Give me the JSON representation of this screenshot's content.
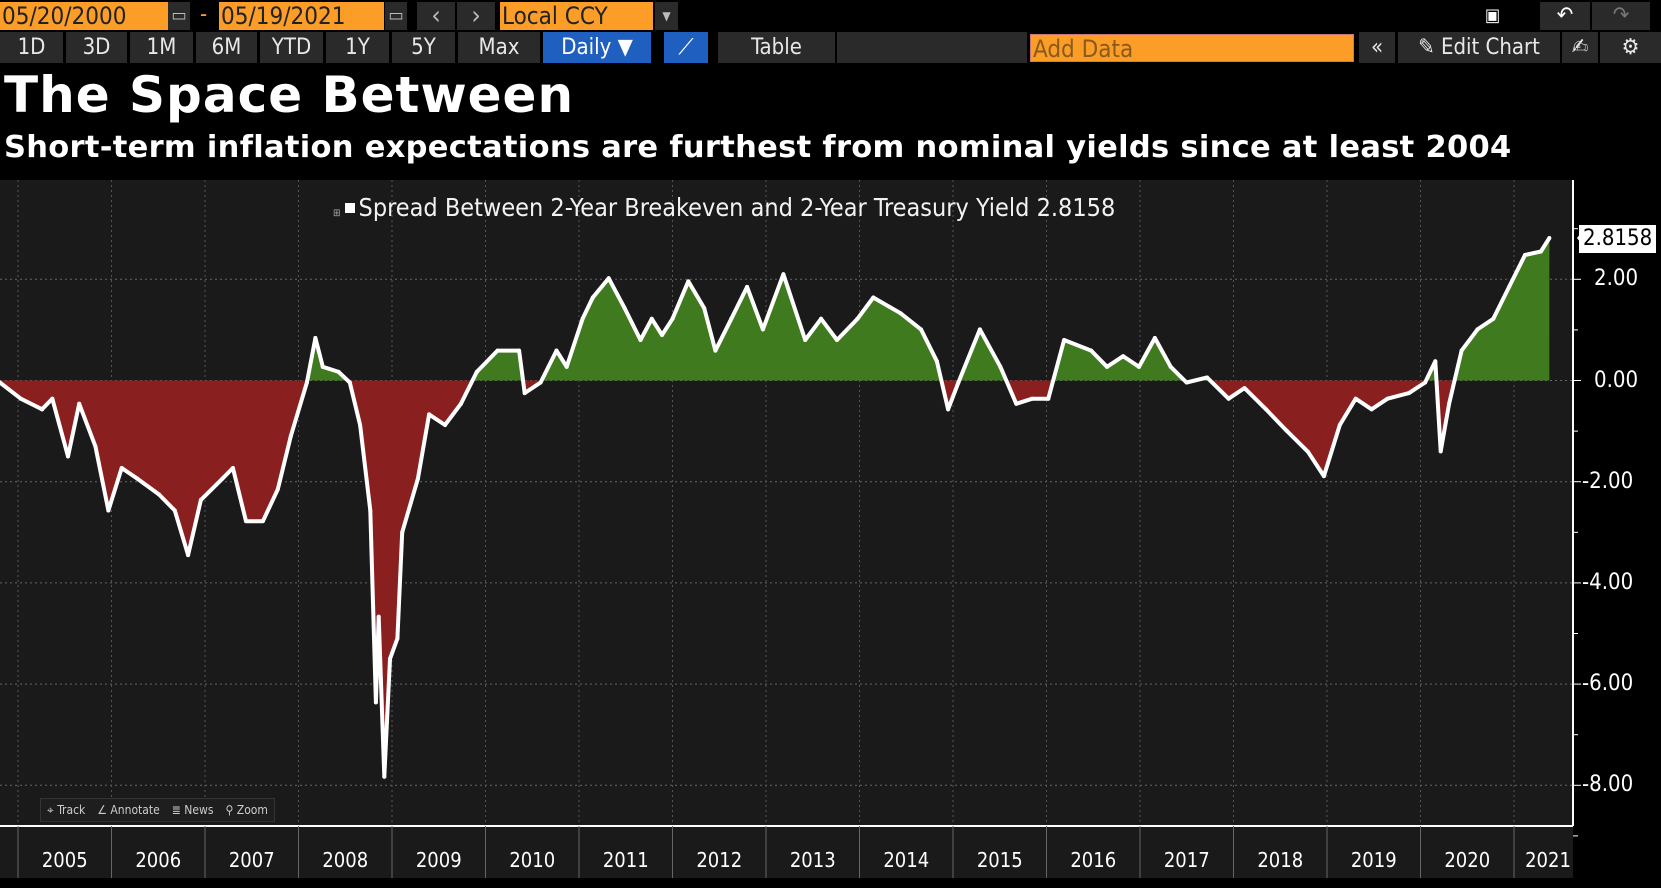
{
  "toolbar": {
    "start_date": "05/20/2000",
    "end_date": "05/19/2021",
    "separator": "-",
    "prev_label": "‹",
    "next_label": "›",
    "currency": "Local CCY",
    "periods": [
      "1D",
      "3D",
      "1M",
      "6M",
      "YTD",
      "1Y",
      "5Y",
      "Max"
    ],
    "frequency": "Daily ▼",
    "table_label": "Table",
    "add_data_placeholder": "Add Data",
    "collapse_label": "«",
    "edit_chart_label": "Edit Chart"
  },
  "header": {
    "title": "The Space Between",
    "subtitle": "Short-term inflation expectations are furthest from nominal yields since at least 2004"
  },
  "chart_tools": [
    "Track",
    "Annotate",
    "News",
    "Zoom"
  ],
  "colors": {
    "positive_fill": "#3f7a1e",
    "negative_fill": "#8a1f1f",
    "line": "#ffffff",
    "plot_bg": "#1a1a1a",
    "accent": "#fb9d27"
  },
  "chart_data": {
    "type": "area",
    "title": "The Space Between",
    "subtitle": "Short-term inflation expectations are furthest from nominal yields since at least 2004",
    "legend_position": "top-center",
    "grid": true,
    "y_axis_side": "right",
    "ylim": [
      -9,
      3.4
    ],
    "yticks": [
      "2.00",
      "0.00",
      "-2.00",
      "-4.00",
      "-6.00",
      "-8.00"
    ],
    "xticks": [
      "2005",
      "2006",
      "2007",
      "2008",
      "2009",
      "2010",
      "2011",
      "2012",
      "2013",
      "2014",
      "2015",
      "2016",
      "2017",
      "2018",
      "2019",
      "2020",
      "2021"
    ],
    "last_value_label": "2.8158",
    "series": [
      {
        "name": "Spread Between 2-Year Breakeven and 2-Year Treasury Yield",
        "last": "2.8158",
        "x": [
          "2004-10-22",
          "2005-01-12",
          "2005-04-05",
          "2005-05-15",
          "2005-07-15",
          "2005-08-28",
          "2005-10-30",
          "2005-12-20",
          "2006-02-10",
          "2006-04-12",
          "2006-07-05",
          "2006-09-05",
          "2006-10-27",
          "2006-12-16",
          "2007-03-10",
          "2007-04-20",
          "2007-06-10",
          "2007-08-15",
          "2007-10-12",
          "2007-12-02",
          "2008-02-03",
          "2008-03-07",
          "2008-04-05",
          "2008-06-06",
          "2008-07-20",
          "2008-08-29",
          "2008-10-08",
          "2008-10-30",
          "2008-11-10",
          "2008-12-02",
          "2008-12-24",
          "2009-01-22",
          "2009-02-10",
          "2009-04-12",
          "2009-05-26",
          "2009-07-27",
          "2009-09-27",
          "2009-11-28",
          "2010-02-17",
          "2010-05-12",
          "2010-06-03",
          "2010-08-04",
          "2010-10-05",
          "2010-11-14",
          "2011-01-15",
          "2011-02-24",
          "2011-04-27",
          "2011-06-28",
          "2011-08-29",
          "2011-10-12",
          "2011-11-21",
          "2012-01-01",
          "2012-03-03",
          "2012-05-04",
          "2012-06-17",
          "2012-08-18",
          "2012-10-19",
          "2012-12-20",
          "2013-03-10",
          "2013-06-03",
          "2013-08-04",
          "2013-10-05",
          "2013-12-24",
          "2014-02-24",
          "2014-06-10",
          "2014-08-29",
          "2014-10-30",
          "2014-12-13",
          "2015-01-22",
          "2015-04-16",
          "2015-07-05",
          "2015-09-05",
          "2015-11-06",
          "2016-01-08",
          "2016-03-10",
          "2016-06-24",
          "2016-08-25",
          "2016-10-27",
          "2016-12-28",
          "2017-02-28",
          "2017-05-01",
          "2017-07-02",
          "2017-09-20",
          "2017-12-13",
          "2018-02-13",
          "2018-05-08",
          "2018-07-27",
          "2018-10-19",
          "2018-12-20",
          "2019-02-20",
          "2019-04-23",
          "2019-06-24",
          "2019-08-25",
          "2019-11-17",
          "2020-01-19",
          "2020-02-28",
          "2020-03-20",
          "2020-04-22",
          "2020-06-10",
          "2020-08-11",
          "2020-10-12",
          "2020-12-13",
          "2021-02-13",
          "2021-04-16",
          "2021-05-19"
        ],
        "y": [
          -0.04,
          -0.36,
          -0.57,
          -0.36,
          -1.5,
          -0.46,
          -1.3,
          -2.57,
          -1.73,
          -1.94,
          -2.25,
          -2.57,
          -3.45,
          -2.36,
          -1.94,
          -1.73,
          -2.78,
          -2.78,
          -2.15,
          -1.1,
          -0.04,
          0.84,
          0.27,
          0.17,
          -0.04,
          -0.88,
          -2.57,
          -6.36,
          -4.67,
          -7.83,
          -5.5,
          -5.1,
          -3.0,
          -1.94,
          -0.67,
          -0.88,
          -0.46,
          0.17,
          0.59,
          0.59,
          -0.25,
          -0.04,
          0.59,
          0.27,
          1.22,
          1.64,
          2.02,
          1.43,
          0.8,
          1.22,
          0.9,
          1.22,
          1.96,
          1.43,
          0.59,
          1.22,
          1.85,
          1.01,
          2.1,
          0.8,
          1.22,
          0.8,
          1.22,
          1.64,
          1.33,
          1.01,
          0.38,
          -0.57,
          -0.04,
          1.01,
          0.27,
          -0.46,
          -0.36,
          -0.36,
          0.8,
          0.59,
          0.27,
          0.48,
          0.27,
          0.84,
          0.27,
          -0.04,
          0.06,
          -0.36,
          -0.15,
          -0.57,
          -0.99,
          -1.41,
          -1.89,
          -0.88,
          -0.36,
          -0.57,
          -0.36,
          -0.25,
          -0.04,
          0.38,
          -1.4,
          -0.46,
          0.59,
          1.01,
          1.22,
          1.85,
          2.48,
          2.55,
          2.8158
        ]
      }
    ]
  }
}
